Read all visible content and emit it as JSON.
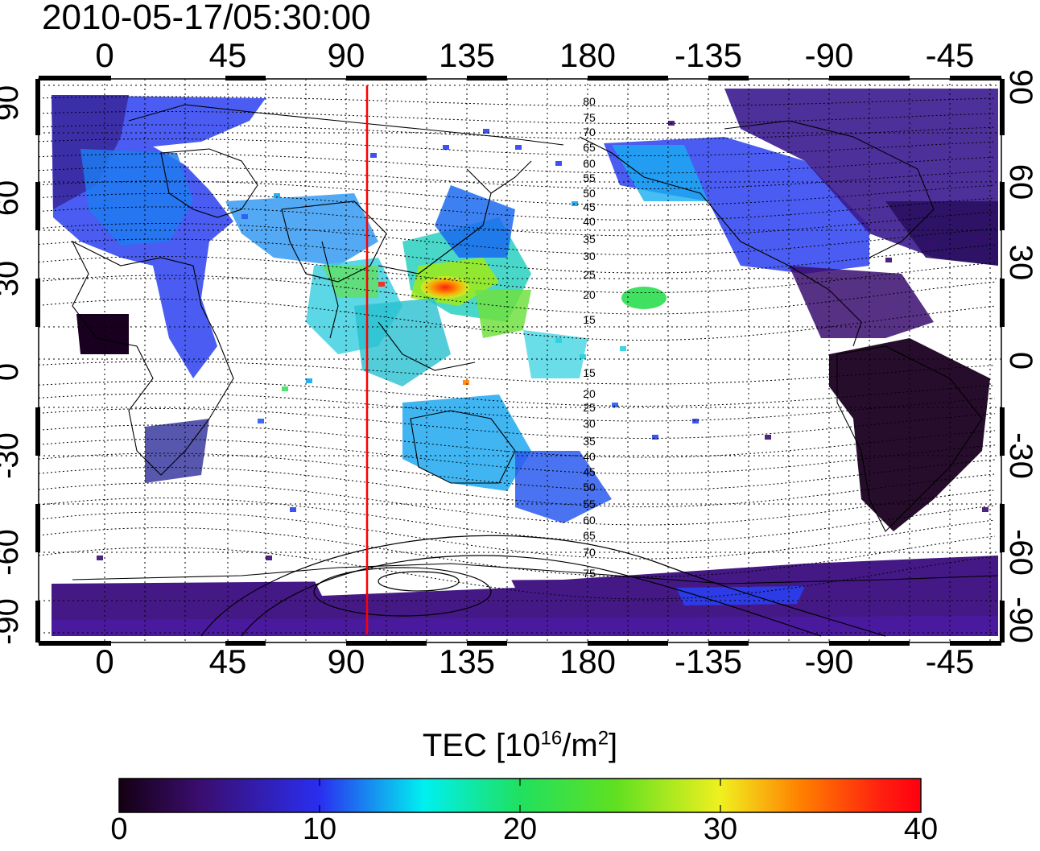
{
  "timestamp": "2010-05-17/05:30:00",
  "lon_ticks": [
    "0",
    "45",
    "90",
    "135",
    "180",
    "-135",
    "-90",
    "-45"
  ],
  "lat_ticks": [
    "90",
    "60",
    "30",
    "0",
    "-30",
    "-60",
    "-90"
  ],
  "mlat_north": [
    "80",
    "75",
    "70",
    "65",
    "60",
    "55",
    "50",
    "45",
    "40",
    "35",
    "30",
    "25",
    "20",
    "15"
  ],
  "mlat_south": [
    "15",
    "20",
    "25",
    "30",
    "35",
    "40",
    "45",
    "50",
    "55",
    "60",
    "65",
    "70",
    "75"
  ],
  "colorbar": {
    "title_main": "TEC  [10",
    "title_exp1": "16",
    "title_mid": "/m",
    "title_exp2": "2",
    "title_end": "]",
    "ticks": [
      "0",
      "10",
      "20",
      "30",
      "40"
    ],
    "min": 0,
    "max": 40,
    "stops": [
      "#140012",
      "#3a0d6e",
      "#2a2ef0",
      "#12a6f0",
      "#00f0f0",
      "#20e060",
      "#60e020",
      "#f0f020",
      "#ff8000",
      "#ff2010",
      "#ff0010"
    ]
  },
  "marker_line_color": "#ff0000",
  "marker_longitude": 98
}
